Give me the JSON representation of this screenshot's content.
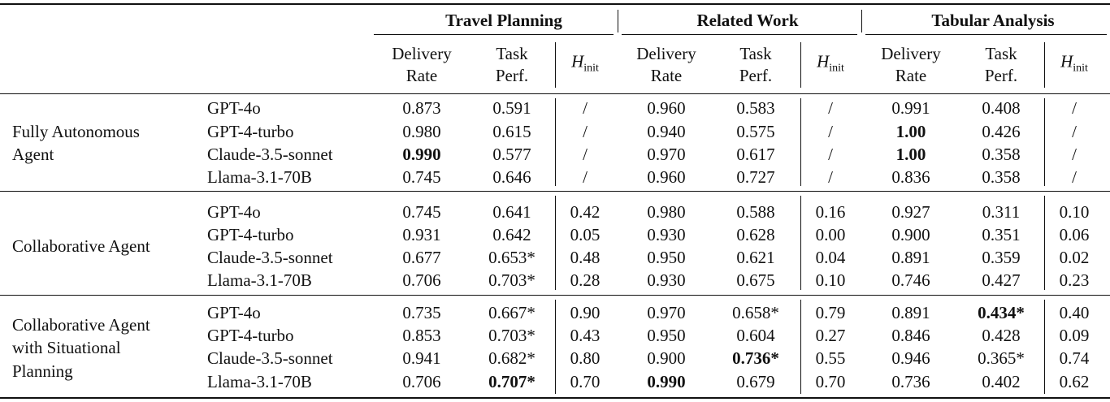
{
  "sections": [
    {
      "title": "Travel Planning",
      "columns": [
        [
          "Delivery",
          "Rate"
        ],
        [
          "Task",
          "Perf."
        ],
        {
          "symbol": "H",
          "subscript": "init"
        }
      ]
    },
    {
      "title": "Related Work",
      "columns": [
        [
          "Delivery",
          "Rate"
        ],
        [
          "Task",
          "Perf."
        ],
        {
          "symbol": "H",
          "subscript": "init"
        }
      ]
    },
    {
      "title": "Tabular Analysis",
      "columns": [
        [
          "Delivery",
          "Rate"
        ],
        [
          "Task",
          "Perf."
        ],
        {
          "symbol": "H",
          "subscript": "init"
        }
      ]
    }
  ],
  "groups": [
    {
      "label": [
        "Fully Autonomous",
        "Agent"
      ],
      "rows": [
        {
          "model": "GPT-4o",
          "cells": [
            "0.873",
            "0.591",
            "/",
            "0.960",
            "0.583",
            "/",
            "0.991",
            "0.408",
            "/"
          ]
        },
        {
          "model": "GPT-4-turbo",
          "cells": [
            "0.980",
            "0.615",
            "/",
            "0.940",
            "0.575",
            "/",
            {
              "text": "1.00",
              "bold": true
            },
            "0.426",
            "/"
          ]
        },
        {
          "model": "Claude-3.5-sonnet",
          "cells": [
            {
              "text": "0.990",
              "bold": true
            },
            "0.577",
            "/",
            "0.970",
            "0.617",
            "/",
            {
              "text": "1.00",
              "bold": true
            },
            "0.358",
            "/"
          ]
        },
        {
          "model": "Llama-3.1-70B",
          "cells": [
            "0.745",
            "0.646",
            "/",
            "0.960",
            "0.727",
            "/",
            "0.836",
            "0.358",
            "/"
          ]
        }
      ]
    },
    {
      "label": [
        "Collaborative Agent"
      ],
      "rows": [
        {
          "model": "GPT-4o",
          "cells": [
            "0.745",
            "0.641",
            "0.42",
            "0.980",
            "0.588",
            "0.16",
            "0.927",
            "0.311",
            "0.10"
          ]
        },
        {
          "model": "GPT-4-turbo",
          "cells": [
            "0.931",
            "0.642",
            "0.05",
            "0.930",
            "0.628",
            "0.00",
            "0.900",
            "0.351",
            "0.06"
          ]
        },
        {
          "model": "Claude-3.5-sonnet",
          "cells": [
            "0.677",
            "0.653*",
            "0.48",
            "0.950",
            "0.621",
            "0.04",
            "0.891",
            "0.359",
            "0.02"
          ]
        },
        {
          "model": "Llama-3.1-70B",
          "cells": [
            "0.706",
            "0.703*",
            "0.28",
            "0.930",
            "0.675",
            "0.10",
            "0.746",
            "0.427",
            "0.23"
          ]
        }
      ]
    },
    {
      "label": [
        "Collaborative Agent",
        "with Situational",
        "Planning"
      ],
      "rows": [
        {
          "model": "GPT-4o",
          "cells": [
            "0.735",
            "0.667*",
            "0.90",
            "0.970",
            "0.658*",
            "0.79",
            "0.891",
            {
              "text": "0.434*",
              "bold": true
            },
            "0.40"
          ]
        },
        {
          "model": "GPT-4-turbo",
          "cells": [
            "0.853",
            "0.703*",
            "0.43",
            "0.950",
            "0.604",
            "0.27",
            "0.846",
            "0.428",
            "0.09"
          ]
        },
        {
          "model": "Claude-3.5-sonnet",
          "cells": [
            "0.941",
            "0.682*",
            "0.80",
            "0.900",
            {
              "text": "0.736*",
              "bold": true
            },
            "0.55",
            "0.946",
            "0.365*",
            "0.74"
          ]
        },
        {
          "model": "Llama-3.1-70B",
          "cells": [
            "0.706",
            {
              "text": "0.707*",
              "bold": true
            },
            "0.70",
            {
              "text": "0.990",
              "bold": true
            },
            "0.679",
            "0.70",
            "0.736",
            "0.402",
            "0.62"
          ]
        }
      ]
    }
  ]
}
